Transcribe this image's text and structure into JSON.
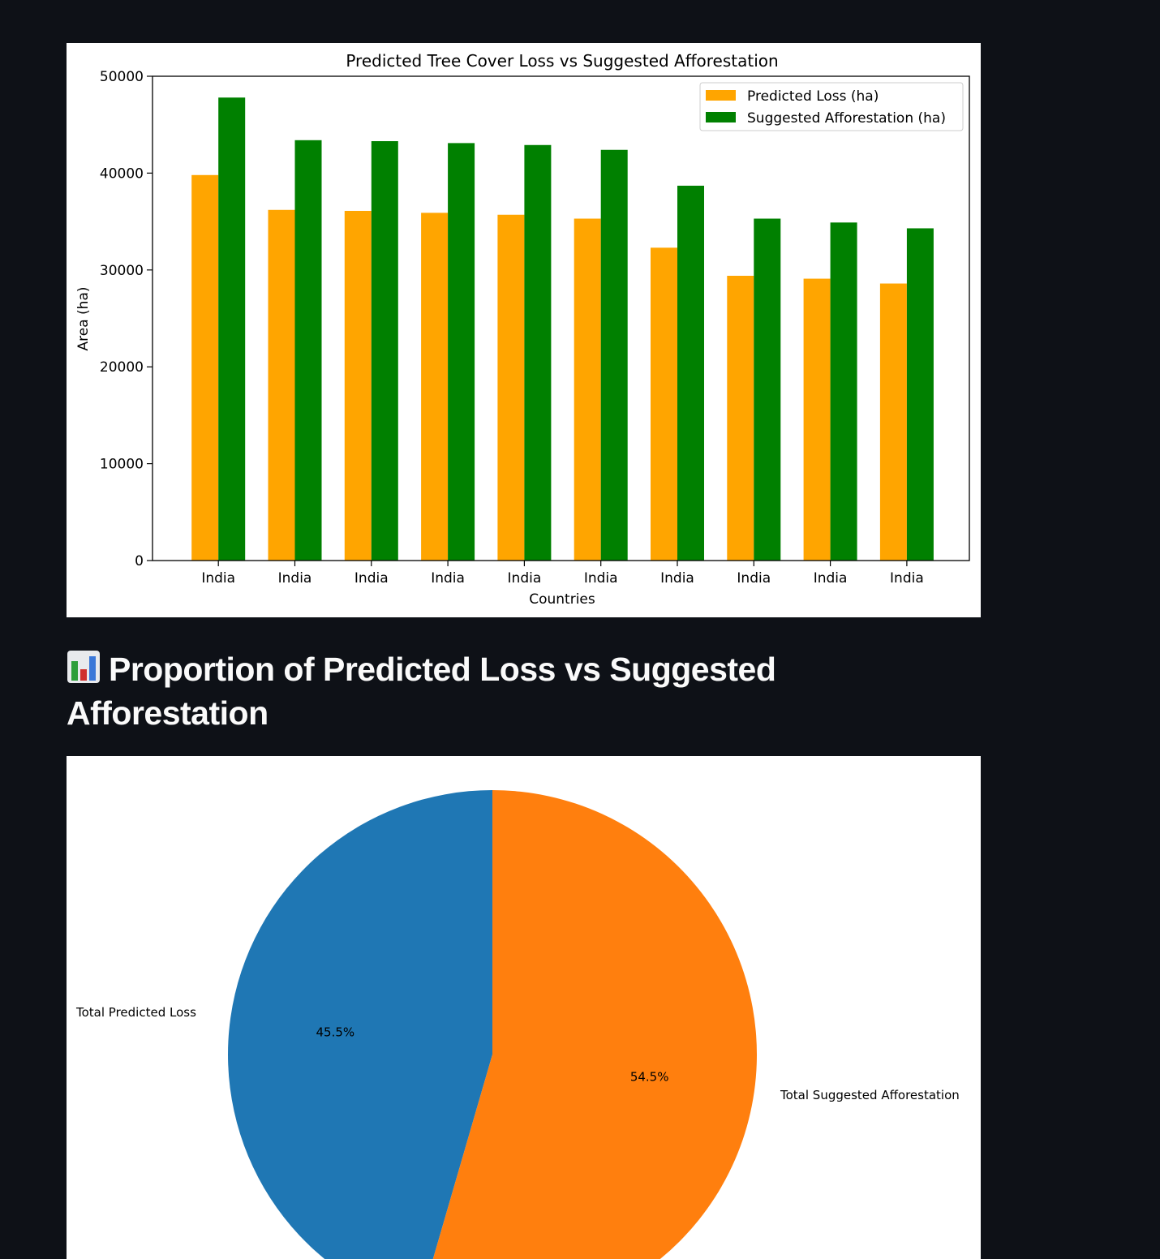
{
  "section": {
    "heading": "Proportion of Predicted Loss vs Suggested Afforestation",
    "icon": "bar-chart-icon"
  },
  "colors": {
    "background": "#0e1117",
    "predicted_loss_bar": "#ffa500",
    "afforestation_bar": "#008000",
    "pie_loss": "#1f77b4",
    "pie_afforestation": "#ff7f0e"
  },
  "chart_data": [
    {
      "type": "bar",
      "title": "Predicted Tree Cover Loss vs Suggested Afforestation",
      "xlabel": "Countries",
      "ylabel": "Area (ha)",
      "categories": [
        "India",
        "India",
        "India",
        "India",
        "India",
        "India",
        "India",
        "India",
        "India",
        "India"
      ],
      "series": [
        {
          "name": "Predicted Loss (ha)",
          "color": "#ffa500",
          "values": [
            39800,
            36200,
            36100,
            35900,
            35700,
            35300,
            32300,
            29400,
            29100,
            28600
          ]
        },
        {
          "name": "Suggested Afforestation (ha)",
          "color": "#008000",
          "values": [
            47800,
            43400,
            43300,
            43100,
            42900,
            42400,
            38700,
            35300,
            34900,
            34300
          ]
        }
      ],
      "ylim": [
        0,
        50000
      ],
      "yticks": [
        0,
        10000,
        20000,
        30000,
        40000,
        50000
      ],
      "grid": false,
      "legend": "top-right"
    },
    {
      "type": "pie",
      "labels": [
        "Total Predicted Loss",
        "Total Suggested Afforestation"
      ],
      "values": [
        45.5,
        54.5
      ],
      "pct_labels": [
        "45.5%",
        "54.5%"
      ],
      "colors": [
        "#1f77b4",
        "#ff7f0e"
      ],
      "start_angle_deg": 90,
      "direction": "clockwise"
    }
  ]
}
